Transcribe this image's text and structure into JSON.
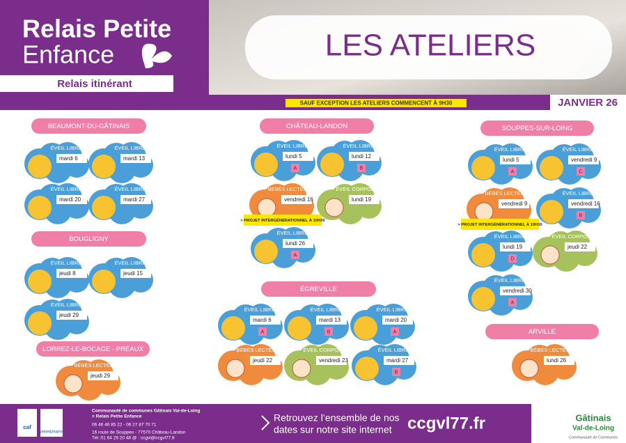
{
  "header": {
    "title_line1": "Relais Petite",
    "title_line2": "Enfance",
    "subtitle": "Relais itinérant",
    "heading": "LES ATELIERS",
    "notice": "SAUF EXCEPTION LES ATELIERS COMMENCENT À 9H30",
    "month": "JANVIER 26"
  },
  "sections": [
    {
      "name": "BEAUMONT-DU-GÂTINAIS",
      "items": [
        {
          "type": "ÉVEIL LIBRE",
          "date": "mardi 6"
        },
        {
          "type": "ÉVEIL LIBRE",
          "date": "mardi 13"
        },
        {
          "type": "ÉVEIL LIBRE",
          "date": "mardi 20"
        },
        {
          "type": "ÉVEIL LIBRE",
          "date": "mardi 27"
        }
      ]
    },
    {
      "name": "BOUGLIGNY",
      "items": [
        {
          "type": "ÉVEIL LIBRE",
          "date": "jeudi 8"
        },
        {
          "type": "ÉVEIL LIBRE",
          "date": "jeudi 15"
        },
        {
          "type": "ÉVEIL LIBRE",
          "date": "jeudi 29"
        }
      ]
    },
    {
      "name": "LORREZ-LE-BOCAGE - PRÉAUX",
      "items": [
        {
          "type": "BÉBÉS LECTEURS",
          "date": "jeudi 29"
        }
      ]
    },
    {
      "name": "CHÂTEAU-LANDON",
      "items": [
        {
          "type": "ÉVEIL LIBRE",
          "date": "lundi 5",
          "code": "A"
        },
        {
          "type": "ÉVEIL LIBRE",
          "date": "lundi 12",
          "code": "B"
        },
        {
          "type": "BÉBÉS LECTEURS",
          "date": "vendredi 16",
          "note": "> PROJET INTERGÉNÉRATIONNEL À 10H30"
        },
        {
          "type": "ÉVEIL CORPOREL",
          "date": "lundi 19"
        },
        {
          "type": "ÉVEIL LIBRE",
          "date": "lundi 26",
          "code": "A"
        }
      ]
    },
    {
      "name": "ÉGREVILLE",
      "items": [
        {
          "type": "ÉVEIL LIBRE",
          "date": "mardi 6",
          "code": "A"
        },
        {
          "type": "ÉVEIL LIBRE",
          "date": "mardi 13",
          "code": "B"
        },
        {
          "type": "ÉVEIL LIBRE",
          "date": "mardi 20",
          "code": "A"
        },
        {
          "type": "BÉBÉS LECTEURS",
          "date": "jeudi 22"
        },
        {
          "type": "ÉVEIL CORPOREL",
          "date": "vendredi 23"
        },
        {
          "type": "ÉVEIL LIBRE",
          "date": "mardi 27",
          "code": "B"
        }
      ]
    },
    {
      "name": "SOUPPES-SUR-LOING",
      "items": [
        {
          "type": "ÉVEIL LIBRE",
          "date": "lundi 5",
          "code": "A"
        },
        {
          "type": "ÉVEIL LIBRE",
          "date": "vendredi 9",
          "code": "C"
        },
        {
          "type": "BÉBÉS LECTEURS",
          "date": "vendredi 9",
          "note": "> PROJET INTERGÉNÉRATIONNEL À 10H30"
        },
        {
          "type": "ÉVEIL LIBRE",
          "date": "vendredi 16",
          "code": "B"
        },
        {
          "type": "ÉVEIL LIBRE",
          "date": "lundi 19",
          "code": "D"
        },
        {
          "type": "ÉVEIL CORPOREL",
          "date": "jeudi 22"
        },
        {
          "type": "ÉVEIL LIBRE",
          "date": "vendredi 30",
          "code": "A"
        }
      ]
    },
    {
      "name": "ARVILLE",
      "items": [
        {
          "type": "BÉBÉS LECTEURS",
          "date": "lundi 26"
        }
      ]
    }
  ],
  "footer": {
    "org": "Communauté de communes Gâtinais Val-de-Loing",
    "service": "> Relais Petite Enfance",
    "phones": "06 46 46 85 22 - 06 27 87 70 71",
    "address": "16 route de Souppes - 77570 Château-Landon",
    "contact": "Tél :01 64 29 20 48     @ : ccgvl@ccgvl77.fr",
    "promo_line1": "Retrouvez l’ensemble de nos",
    "promo_line2": "dates sur notre site internet",
    "website": "ccgvl77.fr",
    "logo_line1": "Gâtinais",
    "logo_line2": "Val-de-Loing",
    "logo_line3": "Communauté de Communes",
    "badge1": "caf",
    "badge2": "seine&marne"
  }
}
